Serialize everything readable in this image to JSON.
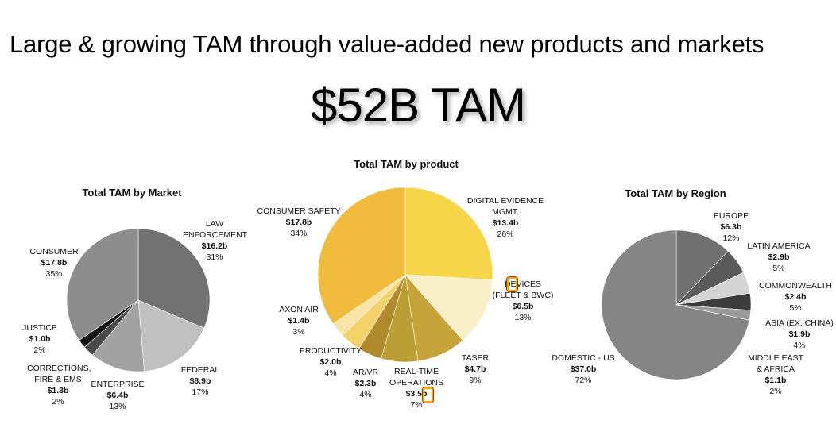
{
  "headline": "Large & growing TAM through value-added new products and markets",
  "big_title": "$52B TAM",
  "chart_data": [
    {
      "type": "pie",
      "title": "Total TAM by Market",
      "slices": [
        {
          "label": "LAW ENFORCEMENT",
          "value_text": "$16.2b",
          "pct_text": "31%",
          "value": 16.2,
          "color": "#727272"
        },
        {
          "label": "FEDERAL",
          "value_text": "$8.9b",
          "pct_text": "17%",
          "value": 8.9,
          "color": "#c0c0c0"
        },
        {
          "label": "ENTERPRISE",
          "value_text": "$6.4b",
          "pct_text": "13%",
          "value": 6.4,
          "color": "#a2a2a2"
        },
        {
          "label": "CORRECTIONS, FIRE & EMS",
          "value_text": "$1.3b",
          "pct_text": "2%",
          "value": 1.3,
          "color": "#4a4a4a"
        },
        {
          "label": "JUSTICE",
          "value_text": "$1.0b",
          "pct_text": "2%",
          "value": 1.0,
          "color": "#111111"
        },
        {
          "label": "CONSUMER",
          "value_text": "$17.8b",
          "pct_text": "35%",
          "value": 17.8,
          "color": "#8d8d8d"
        }
      ]
    },
    {
      "type": "pie",
      "title": "Total TAM by product",
      "slices": [
        {
          "label": "DIGITAL EVIDENCE MGMT.",
          "value_text": "$13.4b",
          "pct_text": "26%",
          "value": 13.4,
          "color": "#f6d548"
        },
        {
          "label": "DEVICES (FLEET & BWC)",
          "value_text": "$6.5b",
          "pct_text": "13%",
          "value": 6.5,
          "color": "#faf0c8"
        },
        {
          "label": "TASER",
          "value_text": "$4.7b",
          "pct_text": "9%",
          "value": 4.7,
          "color": "#c6a43a"
        },
        {
          "label": "REAL-TIME OPERATIONS",
          "value_text": "$3.5b",
          "pct_text": "7%",
          "value": 3.5,
          "color": "#ba9f35"
        },
        {
          "label": "AR/VR",
          "value_text": "$2.3b",
          "pct_text": "4%",
          "value": 2.3,
          "color": "#b08a2c"
        },
        {
          "label": "PRODUCTIVITY",
          "value_text": "$2.0b",
          "pct_text": "4%",
          "value": 2.0,
          "color": "#f3d26a"
        },
        {
          "label": "AXON AIR",
          "value_text": "$1.4b",
          "pct_text": "3%",
          "value": 1.4,
          "color": "#f8e4a6"
        },
        {
          "label": "CONSUMER SAFETY",
          "value_text": "$17.8b",
          "pct_text": "34%",
          "value": 17.8,
          "color": "#f1bc3e"
        }
      ],
      "gap_slice_color": "#fdf8e2"
    },
    {
      "type": "pie",
      "title": "Total TAM by Region",
      "slices": [
        {
          "label": "EUROPE",
          "value_text": "$6.3b",
          "pct_text": "12%",
          "value": 6.3,
          "color": "#717171"
        },
        {
          "label": "LATIN AMERICA",
          "value_text": "$2.9b",
          "pct_text": "5%",
          "value": 2.9,
          "color": "#5a5a5a"
        },
        {
          "label": "COMMONWEALTH",
          "value_text": "$2.4b",
          "pct_text": "5%",
          "value": 2.4,
          "color": "#d4d4d4"
        },
        {
          "label": "ASIA (EX. CHINA)",
          "value_text": "$1.9b",
          "pct_text": "4%",
          "value": 1.9,
          "color": "#3c3c3c"
        },
        {
          "label": "MIDDLE EAST & AFRICA",
          "value_text": "$1.1b",
          "pct_text": "2%",
          "value": 1.1,
          "color": "#9a9a9a"
        },
        {
          "label": "DOMESTIC - US",
          "value_text": "$37.0b",
          "pct_text": "72%",
          "value": 37.0,
          "color": "#858585"
        }
      ]
    }
  ]
}
